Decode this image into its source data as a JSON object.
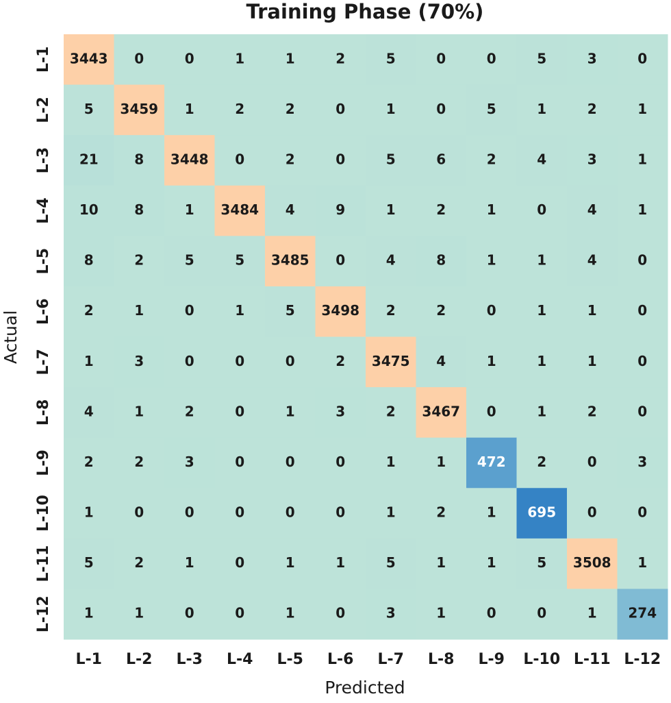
{
  "chart_data": {
    "type": "heatmap",
    "title": "Training Phase (70%)",
    "xlabel": "Predicted",
    "ylabel": "Actual",
    "x_categories": [
      "L-1",
      "L-2",
      "L-3",
      "L-4",
      "L-5",
      "L-6",
      "L-7",
      "L-8",
      "L-9",
      "L-10",
      "L-11",
      "L-12"
    ],
    "y_categories": [
      "L-1",
      "L-2",
      "L-3",
      "L-4",
      "L-5",
      "L-6",
      "L-7",
      "L-8",
      "L-9",
      "L-10",
      "L-11",
      "L-12"
    ],
    "values": [
      [
        3443,
        0,
        0,
        1,
        1,
        2,
        5,
        0,
        0,
        5,
        3,
        0
      ],
      [
        5,
        3459,
        1,
        2,
        2,
        0,
        1,
        0,
        5,
        1,
        2,
        1
      ],
      [
        21,
        8,
        3448,
        0,
        2,
        0,
        5,
        6,
        2,
        4,
        3,
        1
      ],
      [
        10,
        8,
        1,
        3484,
        4,
        9,
        1,
        2,
        1,
        0,
        4,
        1
      ],
      [
        8,
        2,
        5,
        5,
        3485,
        0,
        4,
        8,
        1,
        1,
        4,
        0
      ],
      [
        2,
        1,
        0,
        1,
        5,
        3498,
        2,
        2,
        0,
        1,
        1,
        0
      ],
      [
        1,
        3,
        0,
        0,
        0,
        2,
        3475,
        4,
        1,
        1,
        1,
        0
      ],
      [
        4,
        1,
        2,
        0,
        1,
        3,
        2,
        3467,
        0,
        1,
        2,
        0
      ],
      [
        2,
        2,
        3,
        0,
        0,
        0,
        1,
        1,
        472,
        2,
        0,
        3
      ],
      [
        1,
        0,
        0,
        0,
        0,
        0,
        1,
        2,
        1,
        695,
        0,
        0
      ],
      [
        5,
        2,
        1,
        0,
        1,
        1,
        5,
        1,
        1,
        5,
        3508,
        1
      ],
      [
        1,
        1,
        0,
        0,
        1,
        0,
        3,
        1,
        0,
        0,
        1,
        274
      ]
    ],
    "cmap": [
      "#bde3d9",
      "#6fb0d3",
      "#3482c5",
      "#fdd0a8",
      "#fdd0a8",
      "#fdd0a8",
      "#fdd0a8",
      "#fdd0a8",
      "#fdd0a8",
      "#fdd0a8",
      "#fdd0a8"
    ]
  }
}
